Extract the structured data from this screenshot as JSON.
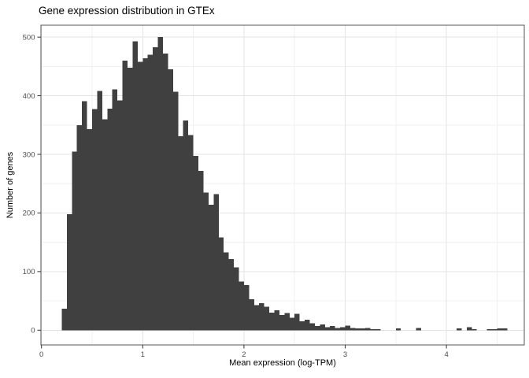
{
  "title": {
    "text": "Gene expression distribution in GTEx"
  },
  "chart_data": {
    "type": "bar",
    "subtype": "histogram",
    "title": "Gene expression distribution in GTEx",
    "xlabel": "Mean expression (log-TPM)",
    "ylabel": "Number of genes",
    "legend": "none",
    "grid": "on",
    "x_ticks": [
      0,
      1,
      2,
      3,
      4
    ],
    "y_ticks": [
      0,
      100,
      200,
      300,
      400,
      500
    ],
    "x_minor_gridlines": [
      0.5,
      1.5,
      2.5,
      3.5,
      4.5
    ],
    "y_minor_gridlines": [
      50,
      150,
      250,
      350,
      450
    ],
    "xlim": [
      -0.005,
      4.77
    ],
    "ylim": [
      -25,
      520
    ],
    "bin_start": 0.2,
    "bin_width": 0.05,
    "bin_counts": [
      37,
      198,
      305,
      350,
      391,
      343,
      377,
      408,
      360,
      378,
      411,
      392,
      460,
      448,
      493,
      458,
      464,
      470,
      483,
      500,
      472,
      445,
      407,
      331,
      358,
      333,
      297,
      272,
      235,
      214,
      232,
      158,
      133,
      121,
      107,
      83,
      77,
      53,
      43,
      46,
      40,
      30,
      34,
      26,
      29,
      21,
      28,
      15,
      18,
      12,
      7,
      10,
      5,
      7,
      4,
      5,
      8,
      4,
      3,
      3,
      4,
      2,
      2,
      0,
      0,
      0,
      3,
      0,
      0,
      0,
      4,
      0,
      0,
      0,
      0,
      0,
      0,
      0,
      3,
      0,
      5,
      2,
      0,
      0,
      2,
      2,
      3,
      3
    ],
    "colors": {
      "background": "#ffffff",
      "bar_fill": "#404040",
      "panel_border": "#545454",
      "grid_major": "#e3e3e3",
      "grid_minor": "#f0f0f0",
      "tick": "#333333",
      "tick_label": "#4d4d4d",
      "title_text": "#000000",
      "axis_title_text": "#000000"
    }
  }
}
